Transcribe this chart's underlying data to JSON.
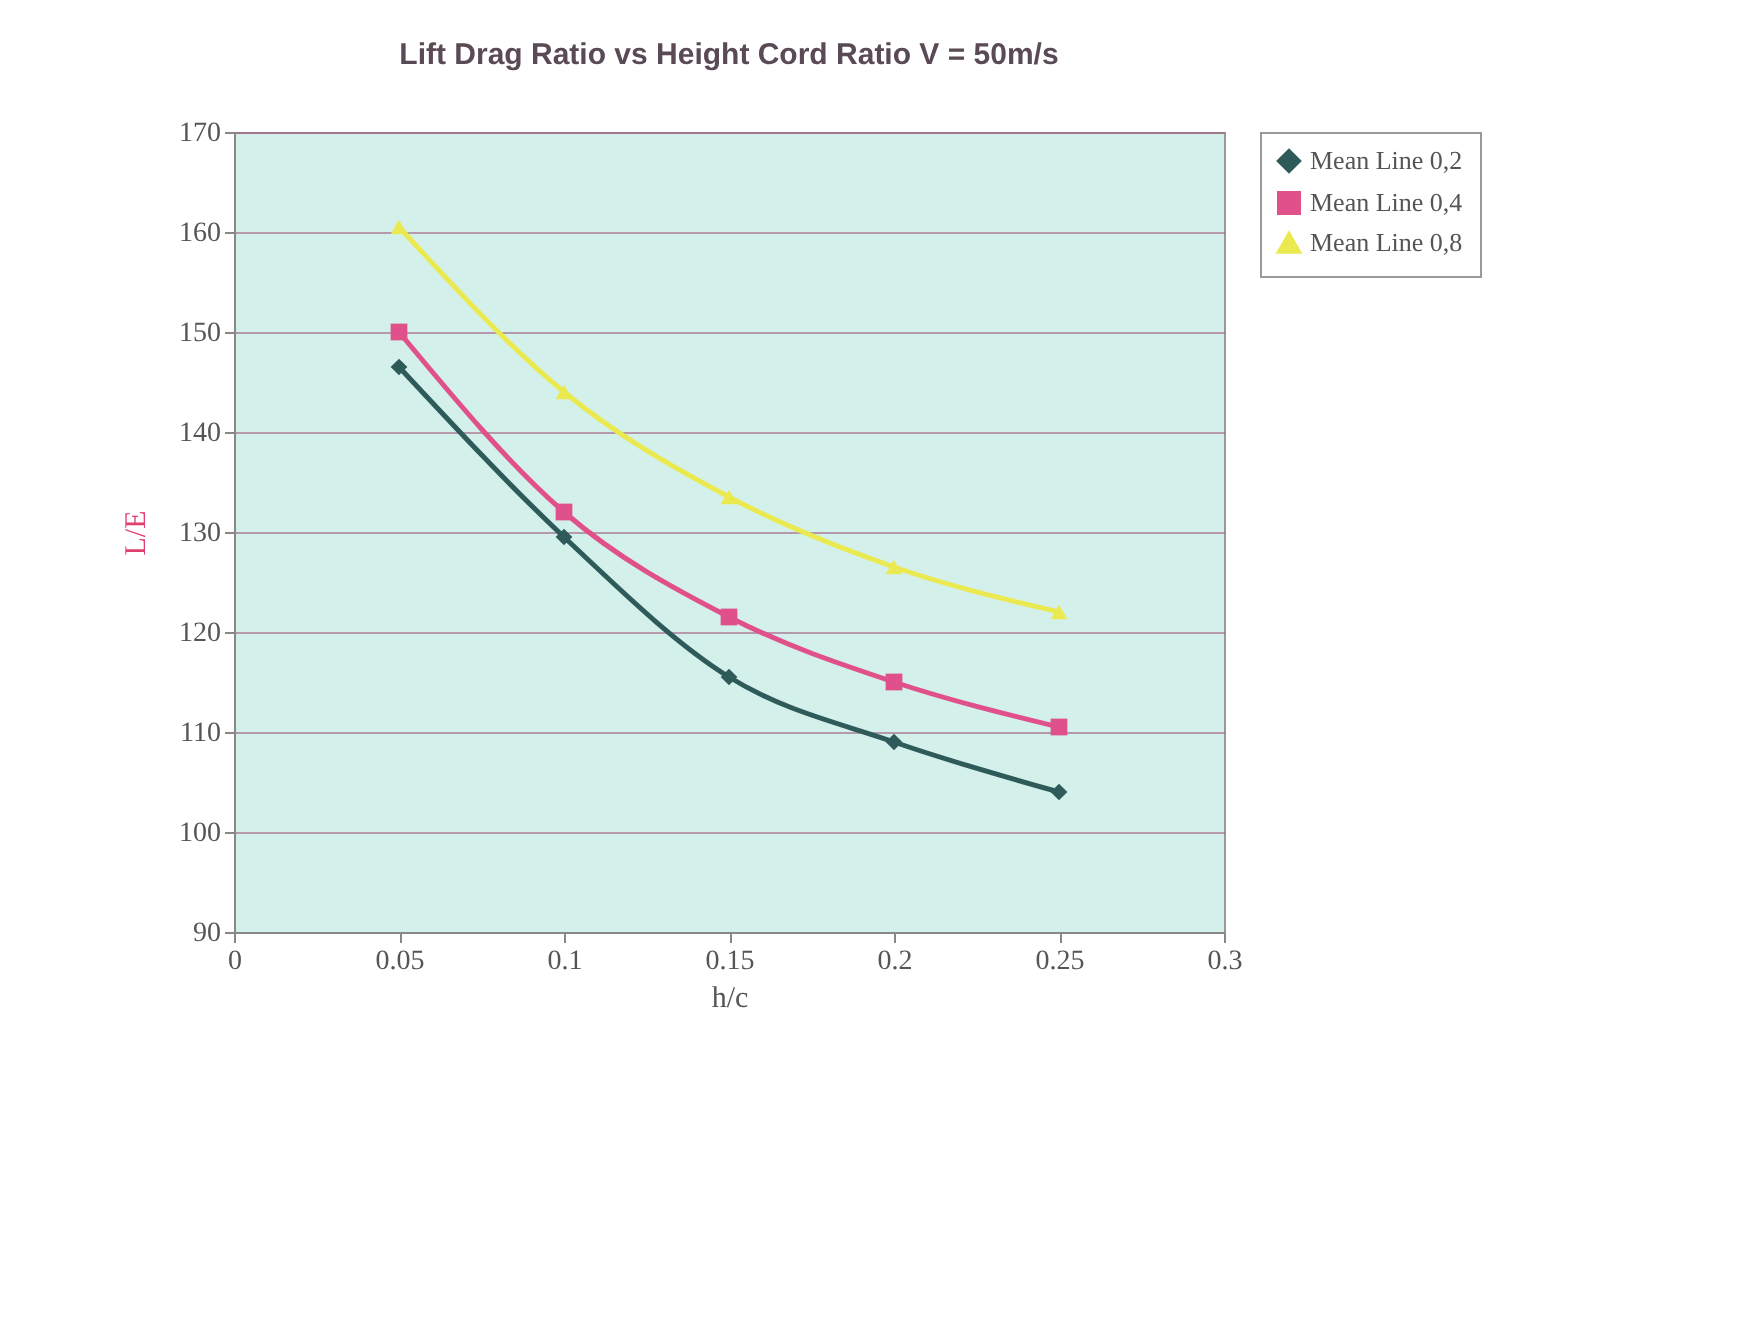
{
  "chart_data": {
    "type": "line",
    "title": "Lift Drag Ratio vs Height Cord Ratio V = 50m/s",
    "xlabel": "h/c",
    "ylabel": "L/E",
    "x": [
      0.05,
      0.1,
      0.15,
      0.2,
      0.25
    ],
    "series": [
      {
        "name": "Mean Line 0,2",
        "color": "#2f5a5a",
        "marker": "diamond",
        "values": [
          146.5,
          129.5,
          115.5,
          109,
          104
        ]
      },
      {
        "name": "Mean Line 0,4",
        "color": "#e0508a",
        "marker": "square",
        "values": [
          150,
          132,
          121.5,
          115,
          110.5
        ]
      },
      {
        "name": "Mean Line 0,8",
        "color": "#eaea50",
        "marker": "triangle",
        "values": [
          160.5,
          144,
          133.5,
          126.5,
          122
        ]
      }
    ],
    "xlim": [
      0,
      0.3
    ],
    "xticks": [
      0,
      0.05,
      0.1,
      0.15,
      0.2,
      0.25,
      0.3
    ],
    "ylim": [
      90,
      170
    ],
    "yticks": [
      90,
      100,
      110,
      120,
      130,
      140,
      150,
      160,
      170
    ],
    "grid": "y",
    "legend": "right",
    "line_style": "solid"
  }
}
